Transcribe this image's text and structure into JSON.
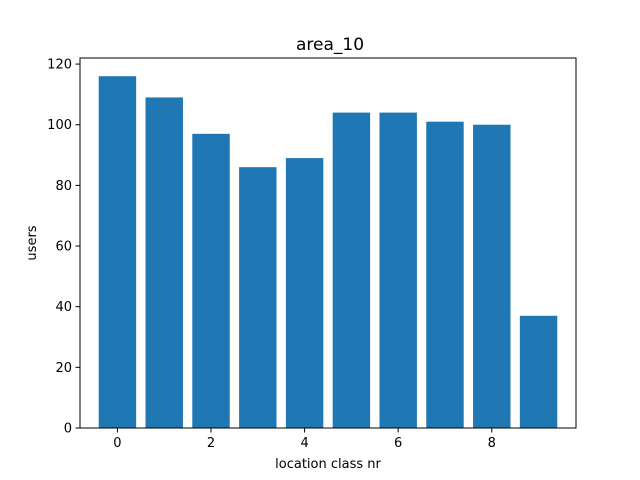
{
  "chart_data": {
    "type": "bar",
    "title": "area_10",
    "xlabel": "location class nr",
    "ylabel": "users",
    "x": [
      0,
      1,
      2,
      3,
      4,
      5,
      6,
      7,
      8,
      9
    ],
    "values": [
      116,
      109,
      97,
      86,
      89,
      104,
      104,
      101,
      100,
      37
    ],
    "xlim": [
      -0.8,
      9.8
    ],
    "ylim": [
      0,
      122
    ],
    "xticks": [
      0,
      2,
      4,
      6,
      8
    ],
    "yticks": [
      0,
      20,
      40,
      60,
      80,
      100,
      120
    ],
    "bar_color": "#1f77b4",
    "grid": false,
    "legend": "none"
  }
}
